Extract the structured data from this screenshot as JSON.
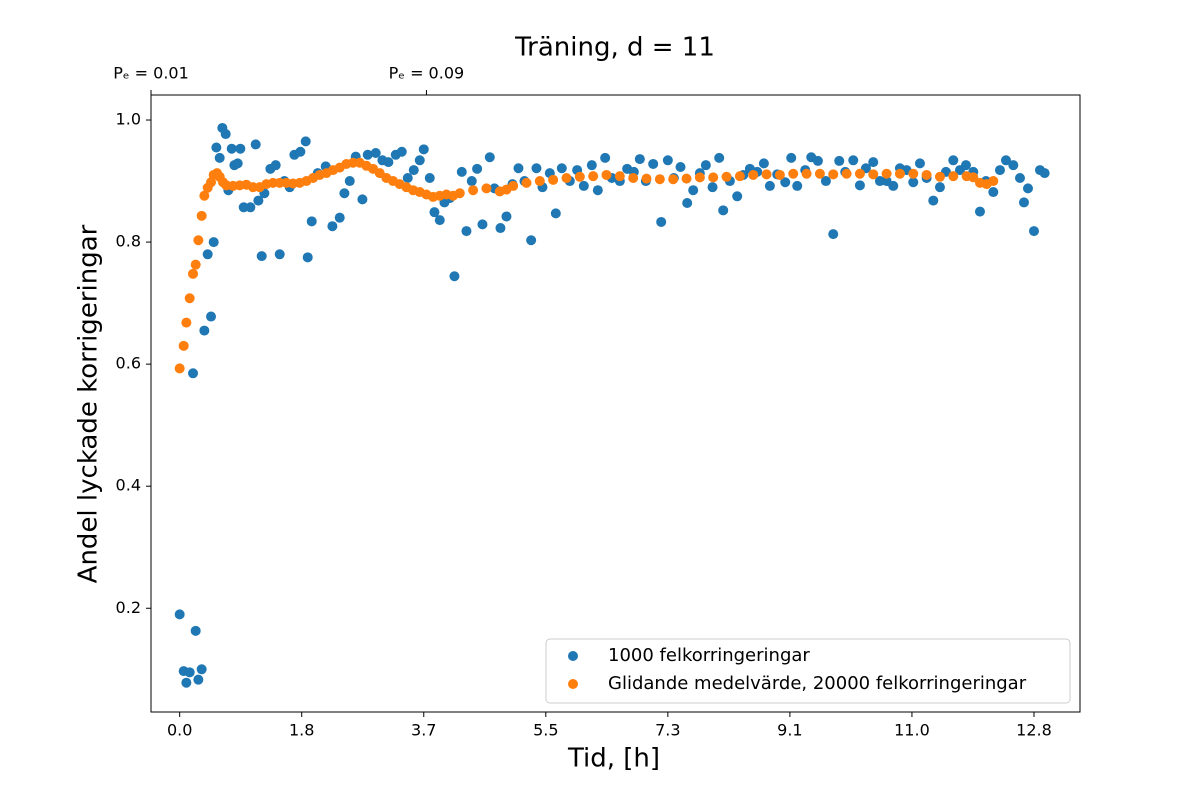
{
  "chart_data": {
    "type": "scatter",
    "title": "Träning, d = 11",
    "x_label": "Tid, [h]",
    "y_label": "Andel lyckade korrigeringar",
    "xlim": [
      -0.43,
      13.5
    ],
    "ylim": [
      0.03,
      1.041
    ],
    "xticks": [
      {
        "value": 0,
        "label": "0.0"
      },
      {
        "value": 1.83,
        "label": "1.8"
      },
      {
        "value": 3.66,
        "label": "3.7"
      },
      {
        "value": 5.49,
        "label": "5.5"
      },
      {
        "value": 7.32,
        "label": "7.3"
      },
      {
        "value": 9.15,
        "label": "9.1"
      },
      {
        "value": 10.98,
        "label": "11.0"
      },
      {
        "value": 12.81,
        "label": "12.8"
      }
    ],
    "yticks": [
      0.2,
      0.4,
      0.6,
      0.8,
      {
        "value": 1.0,
        "label": "1.0"
      }
    ],
    "secondary_xticks": [
      {
        "value": -0.43,
        "label": "Pₑ = 0.01"
      },
      {
        "value": 3.7,
        "label": "Pₑ = 0.09"
      }
    ],
    "legend": "lower right",
    "series": [
      {
        "name": "1000 felkorringeringar",
        "color": "#1f77b4",
        "x": [
          0.0,
          0.06,
          0.1,
          0.15,
          0.2,
          0.24,
          0.28,
          0.33,
          0.37,
          0.42,
          0.47,
          0.51,
          0.55,
          0.6,
          0.64,
          0.69,
          0.73,
          0.78,
          0.82,
          0.87,
          0.91,
          0.96,
          1.06,
          1.14,
          1.18,
          1.23,
          1.27,
          1.36,
          1.44,
          1.5,
          1.57,
          1.65,
          1.72,
          1.81,
          1.89,
          1.92,
          1.98,
          2.07,
          2.19,
          2.29,
          2.4,
          2.47,
          2.55,
          2.64,
          2.74,
          2.82,
          2.94,
          3.04,
          3.13,
          3.24,
          3.33,
          3.42,
          3.51,
          3.6,
          3.66,
          3.75,
          3.82,
          3.9,
          3.97,
          4.05,
          4.12,
          4.23,
          4.3,
          4.38,
          4.46,
          4.54,
          4.65,
          4.72,
          4.81,
          4.9,
          4.99,
          5.08,
          5.17,
          5.27,
          5.35,
          5.44,
          5.55,
          5.64,
          5.73,
          5.85,
          5.96,
          6.06,
          6.18,
          6.27,
          6.38,
          6.48,
          6.6,
          6.71,
          6.81,
          6.9,
          6.99,
          7.1,
          7.22,
          7.32,
          7.41,
          7.51,
          7.61,
          7.7,
          7.8,
          7.89,
          7.99,
          8.09,
          8.15,
          8.25,
          8.36,
          8.45,
          8.55,
          8.66,
          8.76,
          8.85,
          8.96,
          9.08,
          9.17,
          9.26,
          9.38,
          9.47,
          9.57,
          9.69,
          9.8,
          9.89,
          9.98,
          10.1,
          10.2,
          10.29,
          10.4,
          10.5,
          10.6,
          10.7,
          10.8,
          10.9,
          11.0,
          11.1,
          11.2,
          11.3,
          11.4,
          11.49,
          11.6,
          11.7,
          11.79,
          11.9,
          12.0,
          12.09,
          12.2,
          12.3,
          12.39,
          12.5,
          12.6,
          12.66,
          12.72,
          12.81,
          12.9,
          12.97
        ],
        "values": [
          0.19,
          0.097,
          0.078,
          0.095,
          0.585,
          0.163,
          0.083,
          0.1,
          0.655,
          0.78,
          0.678,
          0.8,
          0.955,
          0.938,
          0.987,
          0.977,
          0.885,
          0.953,
          0.926,
          0.929,
          0.953,
          0.857,
          0.857,
          0.96,
          0.868,
          0.777,
          0.88,
          0.92,
          0.926,
          0.78,
          0.9,
          0.89,
          0.943,
          0.948,
          0.965,
          0.775,
          0.834,
          0.913,
          0.924,
          0.826,
          0.84,
          0.88,
          0.9,
          0.94,
          0.87,
          0.943,
          0.946,
          0.934,
          0.931,
          0.943,
          0.948,
          0.905,
          0.918,
          0.934,
          0.952,
          0.905,
          0.849,
          0.836,
          0.865,
          0.872,
          0.744,
          0.915,
          0.818,
          0.9,
          0.92,
          0.829,
          0.939,
          0.888,
          0.823,
          0.842,
          0.895,
          0.921,
          0.9,
          0.803,
          0.921,
          0.89,
          0.913,
          0.847,
          0.921,
          0.9,
          0.918,
          0.892,
          0.926,
          0.885,
          0.938,
          0.905,
          0.9,
          0.92,
          0.915,
          0.936,
          0.9,
          0.928,
          0.833,
          0.934,
          0.905,
          0.923,
          0.864,
          0.885,
          0.913,
          0.926,
          0.89,
          0.938,
          0.852,
          0.9,
          0.875,
          0.91,
          0.92,
          0.915,
          0.929,
          0.892,
          0.911,
          0.898,
          0.938,
          0.892,
          0.918,
          0.939,
          0.933,
          0.9,
          0.813,
          0.933,
          0.915,
          0.934,
          0.893,
          0.921,
          0.931,
          0.9,
          0.9,
          0.892,
          0.921,
          0.918,
          0.898,
          0.929,
          0.905,
          0.868,
          0.89,
          0.915,
          0.934,
          0.918,
          0.926,
          0.915,
          0.85,
          0.9,
          0.882,
          0.918,
          0.934,
          0.926,
          0.905,
          0.865,
          0.888,
          0.818,
          0.918,
          0.913
        ]
      },
      {
        "name": "Glidande medelvärde, 20000 felkorringeringar",
        "color": "#ff7f0e",
        "x": [
          0,
          0.06,
          0.1,
          0.15,
          0.2,
          0.24,
          0.28,
          0.33,
          0.37,
          0.42,
          0.47,
          0.51,
          0.56,
          0.6,
          0.65,
          0.7,
          0.8,
          0.9,
          1.0,
          1.1,
          1.2,
          1.3,
          1.4,
          1.5,
          1.6,
          1.7,
          1.8,
          1.9,
          2.0,
          2.1,
          2.2,
          2.3,
          2.4,
          2.5,
          2.6,
          2.7,
          2.8,
          2.9,
          3.0,
          3.1,
          3.2,
          3.3,
          3.4,
          3.5,
          3.6,
          3.7,
          3.8,
          3.9,
          4.0,
          4.1,
          4.2,
          4.4,
          4.6,
          4.8,
          4.9,
          5.0,
          5.2,
          5.4,
          5.6,
          5.8,
          6.0,
          6.2,
          6.4,
          6.6,
          6.8,
          7.0,
          7.2,
          7.4,
          7.6,
          7.8,
          8.0,
          8.2,
          8.4,
          8.6,
          8.8,
          9.0,
          9.2,
          9.4,
          9.6,
          9.8,
          10.0,
          10.2,
          10.4,
          10.6,
          10.8,
          11.0,
          11.2,
          11.4,
          11.6,
          11.8,
          11.9,
          12.0,
          12.1,
          12.2
        ],
        "values": [
          0.593,
          0.63,
          0.668,
          0.708,
          0.748,
          0.763,
          0.803,
          0.843,
          0.876,
          0.889,
          0.898,
          0.91,
          0.913,
          0.907,
          0.898,
          0.893,
          0.892,
          0.893,
          0.894,
          0.89,
          0.89,
          0.895,
          0.897,
          0.897,
          0.897,
          0.896,
          0.897,
          0.9,
          0.905,
          0.91,
          0.913,
          0.918,
          0.922,
          0.928,
          0.93,
          0.93,
          0.925,
          0.92,
          0.913,
          0.905,
          0.9,
          0.895,
          0.89,
          0.885,
          0.882,
          0.878,
          0.874,
          0.876,
          0.878,
          0.876,
          0.88,
          0.885,
          0.888,
          0.883,
          0.886,
          0.892,
          0.897,
          0.9,
          0.902,
          0.905,
          0.907,
          0.908,
          0.91,
          0.908,
          0.905,
          0.904,
          0.903,
          0.903,
          0.904,
          0.906,
          0.906,
          0.907,
          0.908,
          0.91,
          0.911,
          0.91,
          0.912,
          0.912,
          0.912,
          0.911,
          0.912,
          0.912,
          0.911,
          0.912,
          0.912,
          0.912,
          0.91,
          0.907,
          0.908,
          0.908,
          0.906,
          0.897,
          0.895,
          0.9
        ]
      }
    ]
  }
}
